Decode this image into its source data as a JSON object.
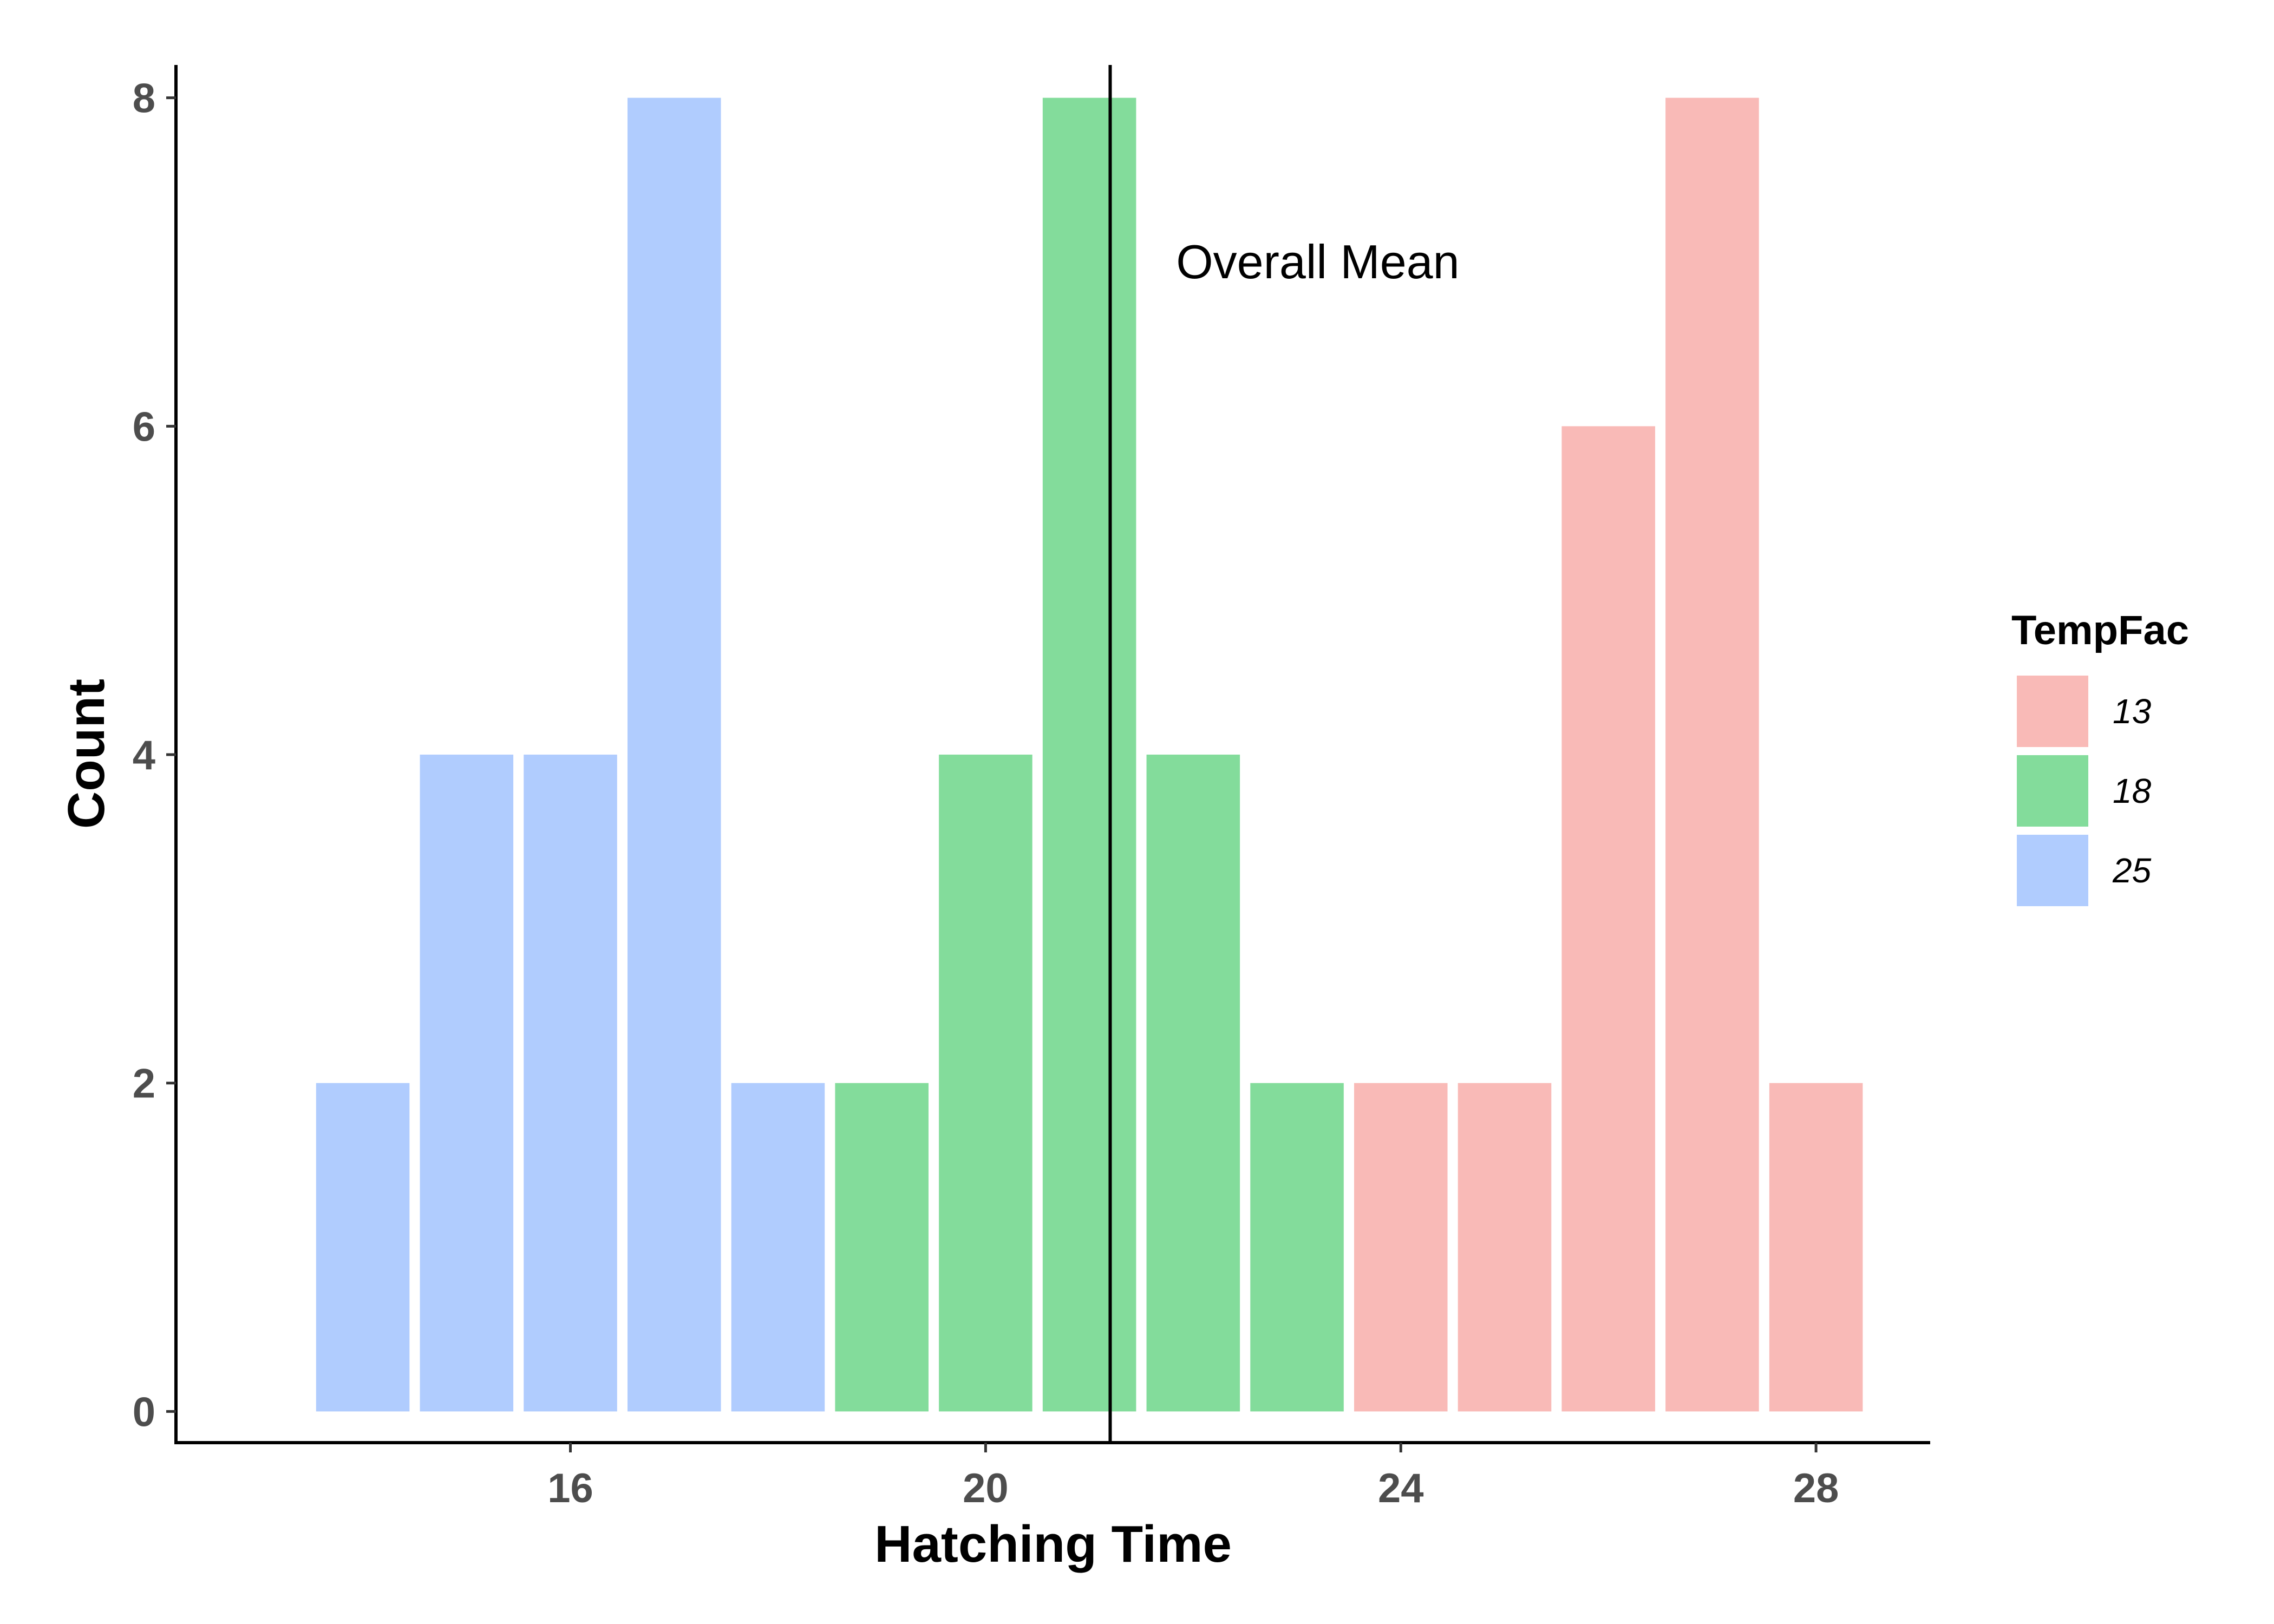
{
  "chart_data": {
    "type": "bar",
    "xlabel": "Hatching Time",
    "ylabel": "Count",
    "xlim": [
      12.2,
      29.1
    ],
    "ylim": [
      -0.19,
      8.2
    ],
    "x_ticks": [
      "16",
      "20",
      "24",
      "28"
    ],
    "x_tick_values": [
      16,
      20,
      24,
      28
    ],
    "y_ticks": [
      "0",
      "2",
      "4",
      "6",
      "8"
    ],
    "y_tick_values": [
      0,
      2,
      4,
      6,
      8
    ],
    "bar_width": 0.9,
    "grid": false,
    "bars": [
      {
        "x": 14,
        "count": 2,
        "group": "25"
      },
      {
        "x": 15,
        "count": 4,
        "group": "25"
      },
      {
        "x": 16,
        "count": 4,
        "group": "25"
      },
      {
        "x": 17,
        "count": 8,
        "group": "25"
      },
      {
        "x": 18,
        "count": 2,
        "group": "25"
      },
      {
        "x": 19,
        "count": 2,
        "group": "18"
      },
      {
        "x": 20,
        "count": 4,
        "group": "18"
      },
      {
        "x": 21,
        "count": 8,
        "group": "18"
      },
      {
        "x": 22,
        "count": 4,
        "group": "18"
      },
      {
        "x": 23,
        "count": 2,
        "group": "18"
      },
      {
        "x": 24,
        "count": 2,
        "group": "13"
      },
      {
        "x": 25,
        "count": 2,
        "group": "13"
      },
      {
        "x": 26,
        "count": 6,
        "group": "13"
      },
      {
        "x": 27,
        "count": 8,
        "group": "13"
      },
      {
        "x": 28,
        "count": 2,
        "group": "13"
      }
    ],
    "vline": {
      "x": 21.2,
      "color": "#000000"
    },
    "annotation": {
      "text": "Overall Mean",
      "x": 23.2,
      "y": 7.0
    },
    "legend": {
      "title": "TempFac",
      "position": "right",
      "items": [
        {
          "label": "13",
          "color": "#F9BAB7"
        },
        {
          "label": "18",
          "color": "#83DC9B"
        },
        {
          "label": "25",
          "color": "#B0CCFE"
        }
      ]
    }
  }
}
